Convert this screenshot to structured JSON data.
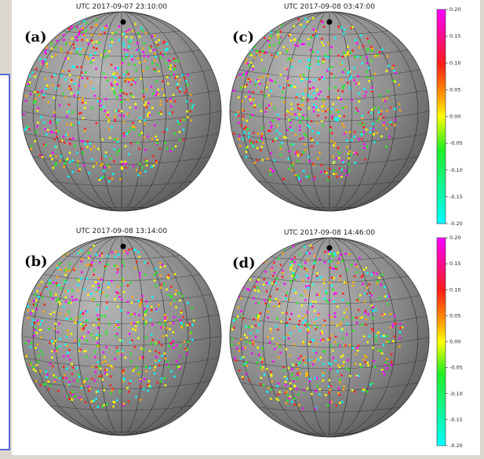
{
  "panels": [
    {
      "label": "(a)",
      "title": "UTC 2017-09-07 23:10:00"
    },
    {
      "label": "(c)",
      "title": "UTC 2017-09-08 03:47:00"
    },
    {
      "label": "(b)",
      "title": "UTC 2017-09-08 13:14:00"
    },
    {
      "label": "(d)",
      "title": "UTC 2017-09-08 14:46:00"
    }
  ],
  "colorbars": [
    {
      "ticks": [
        "0.20",
        "0.15",
        "0.10",
        "0.05",
        "0.00",
        "-0.05",
        "-0.10",
        "-0.15",
        "-0.20"
      ]
    },
    {
      "ticks": [
        "0.20",
        "0.15",
        "0.10",
        "0.05",
        "0.00",
        "-0.05",
        "-0.10",
        "-0.15",
        "-0.20"
      ]
    }
  ]
}
